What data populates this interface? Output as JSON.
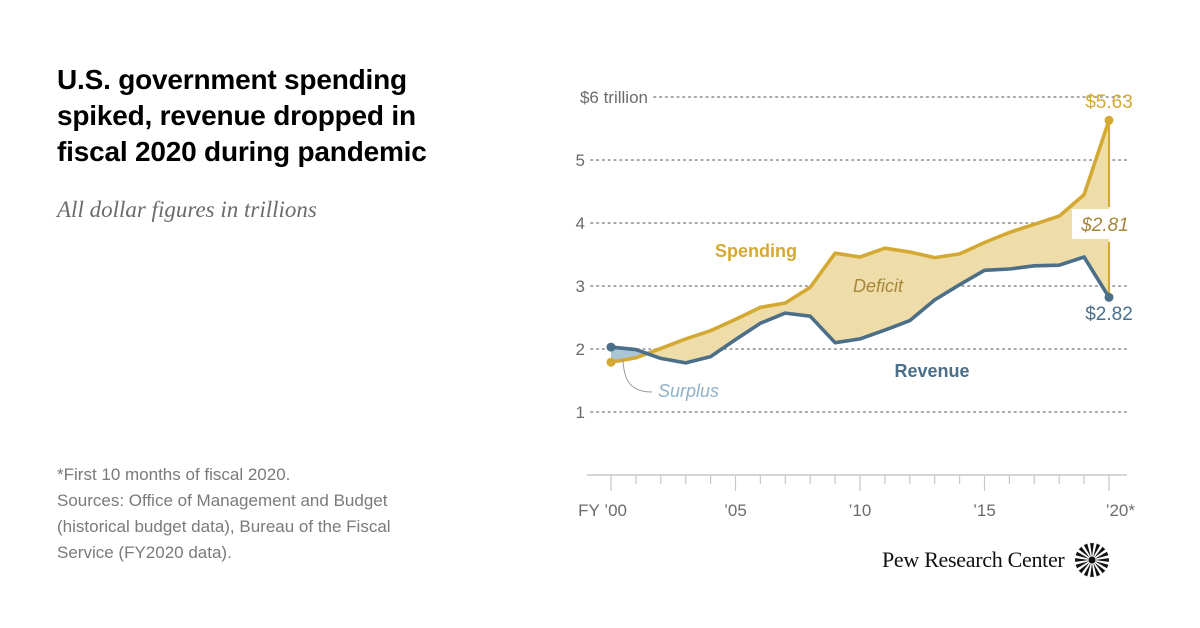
{
  "header": {
    "title": "U.S. government spending spiked, revenue dropped in fiscal 2020 during pandemic",
    "subtitle": "All dollar figures in trillions"
  },
  "notes": [
    "*First 10 months of fiscal 2020.",
    "Sources: Office of Management and Budget",
    "(historical budget data), Bureau of the Fiscal",
    "Service (FY2020 data)."
  ],
  "branding": {
    "name": "Pew Research Center",
    "icon": "pew-sunburst-icon"
  },
  "colors": {
    "spending": "#D4A933",
    "revenue": "#4B6E89",
    "deficit_fill": "#EEDDA8",
    "surplus_fill": "#A9C5D6",
    "surplus_label": "#8FB2C9",
    "deficit_label": "#A6873A",
    "grid": "#8a8a8a"
  },
  "chart_data": {
    "type": "line",
    "title": "U.S. government spending spiked, revenue dropped in fiscal 2020 during pandemic",
    "subtitle": "All dollar figures in trillions",
    "xlabel": "",
    "ylabel": "",
    "x": [
      2000,
      2001,
      2002,
      2003,
      2004,
      2005,
      2006,
      2007,
      2008,
      2009,
      2010,
      2011,
      2012,
      2013,
      2014,
      2015,
      2016,
      2017,
      2018,
      2019,
      2020
    ],
    "xlim": [
      2000,
      2020
    ],
    "ylim": [
      0,
      6
    ],
    "x_ticks": [
      {
        "value": 2000,
        "label": "FY ’00"
      },
      {
        "value": 2005,
        "label": "’05"
      },
      {
        "value": 2010,
        "label": "’10"
      },
      {
        "value": 2015,
        "label": "’15"
      },
      {
        "value": 2020,
        "label": "’20*"
      }
    ],
    "y_ticks": [
      {
        "value": 6,
        "label": "$6 trillion"
      },
      {
        "value": 5,
        "label": "5"
      },
      {
        "value": 4,
        "label": "4"
      },
      {
        "value": 3,
        "label": "3"
      },
      {
        "value": 2,
        "label": "2"
      },
      {
        "value": 1,
        "label": "1"
      }
    ],
    "grid": true,
    "series": [
      {
        "name": "Spending",
        "values": [
          1.79,
          1.86,
          2.01,
          2.16,
          2.29,
          2.47,
          2.66,
          2.73,
          2.98,
          3.52,
          3.46,
          3.6,
          3.54,
          3.45,
          3.51,
          3.69,
          3.85,
          3.98,
          4.11,
          4.45,
          5.63
        ]
      },
      {
        "name": "Revenue",
        "values": [
          2.03,
          1.99,
          1.85,
          1.78,
          1.88,
          2.15,
          2.41,
          2.57,
          2.52,
          2.1,
          2.16,
          2.3,
          2.45,
          2.78,
          3.02,
          3.25,
          3.27,
          3.32,
          3.33,
          3.46,
          2.82
        ]
      }
    ],
    "annotations": {
      "spending_label": "Spending",
      "revenue_label": "Revenue",
      "deficit_label": "Deficit",
      "surplus_label": "Surplus",
      "spending_end": "$5.63",
      "deficit_end": "$2.81",
      "revenue_end": "$2.82"
    },
    "legend": "inline"
  }
}
